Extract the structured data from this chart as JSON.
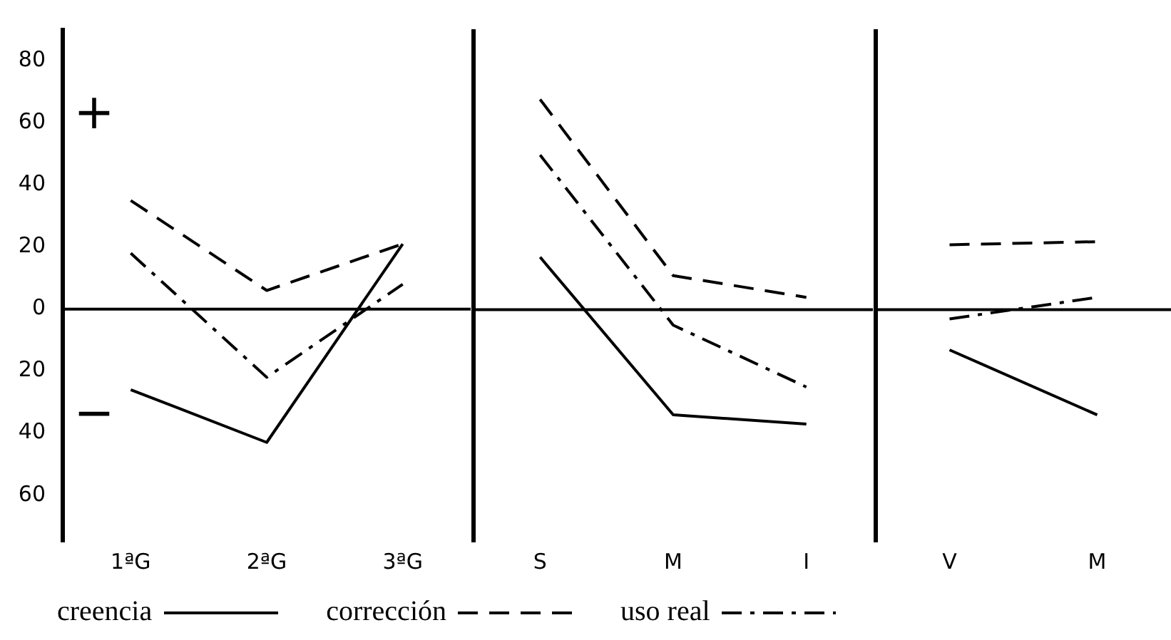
{
  "chart_data": [
    {
      "type": "line",
      "categories": [
        "1ªG",
        "2ªG",
        "3ªG"
      ],
      "ylim": [
        -75,
        90
      ],
      "yticks": [
        {
          "value": -60,
          "label": "60"
        },
        {
          "value": -40,
          "label": "40"
        },
        {
          "value": -20,
          "label": "20"
        },
        0,
        20,
        40,
        60,
        80
      ],
      "series": [
        {
          "name": "creencia",
          "color": "#000000",
          "line_style": "solid",
          "values": [
            -26,
            -43,
            21
          ]
        },
        {
          "name": "corrección",
          "color": "#000000",
          "line_style": "dashed",
          "values": [
            35,
            6,
            21
          ]
        },
        {
          "name": "uso real",
          "color": "#000000",
          "line_style": "dashdot",
          "values": [
            18,
            -22,
            8
          ]
        }
      ],
      "ref_lines": [
        {
          "axis": "y",
          "value": 0
        }
      ],
      "annotations": [
        "+",
        "−"
      ],
      "grid": false,
      "legend": "bottom",
      "marker": "none"
    },
    {
      "type": "line",
      "categories": [
        "S",
        "M",
        "I"
      ],
      "ylim": [
        -75,
        90
      ],
      "tick_labels": "x",
      "series": [
        {
          "color": "#000000",
          "line_style": "solid",
          "values": [
            17,
            -34,
            -37
          ]
        },
        {
          "color": "#000000",
          "line_style": "dashed",
          "values": [
            68,
            11,
            4
          ]
        },
        {
          "color": "#000000",
          "line_style": "dashdot",
          "values": [
            50,
            -5,
            -25
          ]
        }
      ],
      "ref_lines": [
        {
          "axis": "y",
          "value": 0
        }
      ],
      "grid": false,
      "marker": "none"
    },
    {
      "type": "line",
      "categories": [
        "V",
        "M"
      ],
      "ylim": [
        -75,
        90
      ],
      "tick_labels": "x",
      "series": [
        {
          "color": "#000000",
          "line_style": "solid",
          "values": [
            -13,
            -34
          ]
        },
        {
          "color": "#000000",
          "line_style": "dashed",
          "values": [
            21,
            22
          ]
        },
        {
          "color": "#000000",
          "line_style": "dashdot",
          "values": [
            -3,
            4
          ]
        }
      ],
      "ref_lines": [
        {
          "axis": "y",
          "value": 0
        }
      ],
      "grid": false,
      "marker": "none"
    }
  ]
}
